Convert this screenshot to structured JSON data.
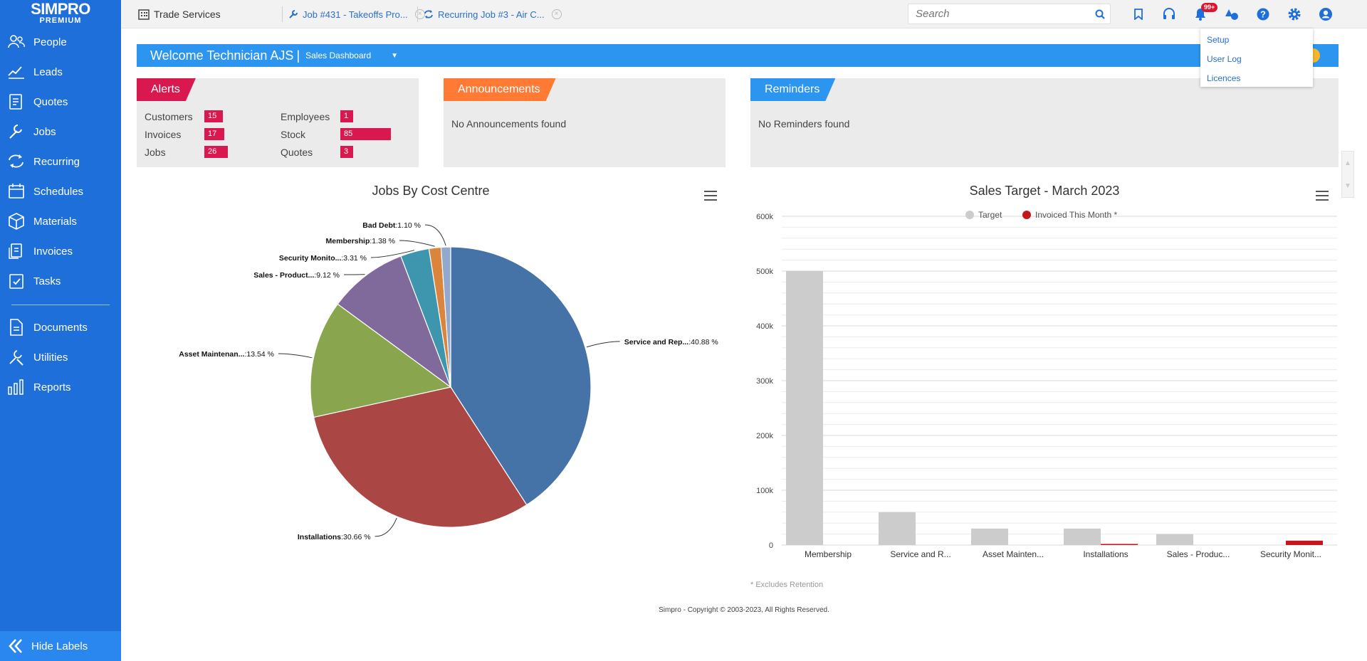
{
  "brand": {
    "name": "SIMPRO",
    "tier": "PREMIUM"
  },
  "sidebar": {
    "items": [
      {
        "label": "People",
        "icon": "people-icon"
      },
      {
        "label": "Leads",
        "icon": "leads-icon"
      },
      {
        "label": "Quotes",
        "icon": "quotes-icon"
      },
      {
        "label": "Jobs",
        "icon": "jobs-icon"
      },
      {
        "label": "Recurring",
        "icon": "recurring-icon"
      },
      {
        "label": "Schedules",
        "icon": "schedules-icon"
      },
      {
        "label": "Materials",
        "icon": "materials-icon"
      },
      {
        "label": "Invoices",
        "icon": "invoices-icon"
      },
      {
        "label": "Tasks",
        "icon": "tasks-icon"
      },
      {
        "label": "Documents",
        "icon": "documents-icon"
      },
      {
        "label": "Utilities",
        "icon": "utilities-icon"
      },
      {
        "label": "Reports",
        "icon": "reports-icon"
      }
    ],
    "hide_labels": "Hide Labels"
  },
  "topbar": {
    "tabs": [
      {
        "label": "Trade Services",
        "icon": "building-icon"
      },
      {
        "label": "Job #431 - Takeoffs Pro...",
        "icon": "wrench-icon"
      },
      {
        "label": "Recurring Job #3 - Air C...",
        "icon": "recurring-icon"
      }
    ],
    "search_placeholder": "Search",
    "notification_badge": "99+"
  },
  "settings_menu": [
    "Setup",
    "User Log",
    "Licences"
  ],
  "welcome": {
    "text": "Welcome Technician AJS",
    "separator": "|",
    "dashboard": "Sales Dashboard"
  },
  "alerts": {
    "title": "Alerts",
    "items": [
      {
        "label": "Customers",
        "value": "15"
      },
      {
        "label": "Invoices",
        "value": "17"
      },
      {
        "label": "Jobs",
        "value": "26"
      },
      {
        "label": "Employees",
        "value": "1"
      },
      {
        "label": "Stock",
        "value": "85"
      },
      {
        "label": "Quotes",
        "value": "3"
      }
    ]
  },
  "announcements": {
    "title": "Announcements",
    "empty": "No Announcements found"
  },
  "reminders": {
    "title": "Reminders",
    "empty": "No Reminders found"
  },
  "chart_data": [
    {
      "type": "pie",
      "title": "Jobs By Cost Centre",
      "slices": [
        {
          "name": "Service and Rep...",
          "value": 40.88,
          "label": ":40.88 %",
          "color": "#4572a7"
        },
        {
          "name": "Installations",
          "value": 30.66,
          "label": ":30.66 %",
          "color": "#aa4643"
        },
        {
          "name": "Asset Maintenan...",
          "value": 13.54,
          "label": ":13.54 %",
          "color": "#89a54e"
        },
        {
          "name": "Sales - Product...",
          "value": 9.12,
          "label": ":9.12 %",
          "color": "#80699b"
        },
        {
          "name": "Security Monito...",
          "value": 3.31,
          "label": ":3.31 %",
          "color": "#3d96ae"
        },
        {
          "name": "Membership",
          "value": 1.38,
          "label": ":1.38 %",
          "color": "#db843d"
        },
        {
          "name": "Bad Debt",
          "value": 1.1,
          "label": ":1.10 %",
          "color": "#92a8cd"
        }
      ]
    },
    {
      "type": "bar",
      "title": "Sales Target - March 2023",
      "categories": [
        "Membership",
        "Service and R...",
        "Asset Mainten...",
        "Installations",
        "Sales - Produc...",
        "Security Monit..."
      ],
      "series": [
        {
          "name": "Target",
          "color": "#cccccc",
          "values": [
            500000,
            60000,
            30000,
            30000,
            20000,
            0
          ]
        },
        {
          "name": "Invoiced This Month *",
          "color": "#c4161c",
          "values": [
            0,
            0,
            0,
            2000,
            0,
            8000
          ]
        }
      ],
      "ylim": [
        0,
        600000
      ],
      "yticks": [
        "0",
        "100k",
        "200k",
        "300k",
        "400k",
        "500k",
        "600k"
      ],
      "legend": "top-center"
    }
  ],
  "footnote": "* Excludes Retention",
  "copyright": "Simpro - Copyright © 2003-2023, All Rights Reserved."
}
